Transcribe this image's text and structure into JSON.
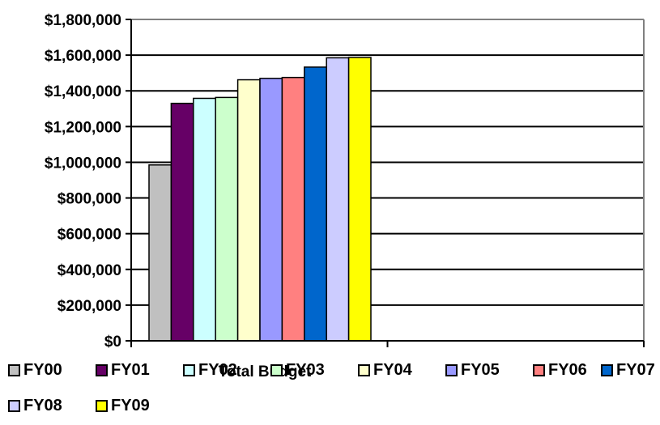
{
  "chart_data": {
    "type": "bar",
    "categories": [
      "Total Budget"
    ],
    "series": [
      {
        "name": "FY00",
        "values": [
          985000
        ],
        "color": "#c0c0c0"
      },
      {
        "name": "FY01",
        "values": [
          1330000
        ],
        "color": "#660066"
      },
      {
        "name": "FY02",
        "values": [
          1358000
        ],
        "color": "#ccffff"
      },
      {
        "name": "FY03",
        "values": [
          1363000
        ],
        "color": "#ccffcc"
      },
      {
        "name": "FY04",
        "values": [
          1462000
        ],
        "color": "#ffffcc"
      },
      {
        "name": "FY05",
        "values": [
          1470000
        ],
        "color": "#9999ff"
      },
      {
        "name": "FY06",
        "values": [
          1475000
        ],
        "color": "#ff8080"
      },
      {
        "name": "FY07",
        "values": [
          1533000
        ],
        "color": "#0066cc"
      },
      {
        "name": "FY08",
        "values": [
          1585000
        ],
        "color": "#ccccff"
      },
      {
        "name": "FY09",
        "values": [
          1587000
        ],
        "color": "#ffff00"
      }
    ],
    "ylim": [
      0,
      1800000
    ],
    "ytick_labels": [
      "$0",
      "$200,000",
      "$400,000",
      "$600,000",
      "$800,000",
      "$1,000,000",
      "$1,200,000",
      "$1,400,000",
      "$1,600,000",
      "$1,800,000"
    ],
    "grid": true,
    "legend_position": "bottom"
  }
}
